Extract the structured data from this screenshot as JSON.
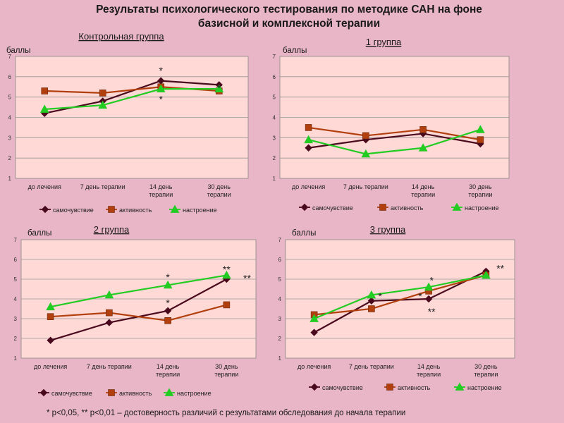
{
  "page": {
    "title_line1": "Результаты психологического тестирования по методике САН на фоне",
    "title_line2": "базисной и комплексной терапии",
    "footnote": "* p<0,05, ** p<0,01 – достоверность различий с результатами обследования до начала терапии"
  },
  "colors": {
    "background": "#e8b6c6",
    "plot_bg": "#ffd9d6",
    "samochuvstvie": "#4a0a1e",
    "aktivnost": "#b2400e",
    "nastroenie": "#22cc22"
  },
  "chart_data": [
    {
      "type": "line",
      "title": "Контрольная группа",
      "ylabel": "баллы",
      "ylim": [
        1,
        7
      ],
      "yticks": [
        "1",
        "2",
        "3",
        "4",
        "5",
        "6",
        "7"
      ],
      "categories": [
        "до лечения",
        "7 день терапии",
        "14 день терапии",
        "30 день терапии"
      ],
      "grid": true,
      "legend": "bottom",
      "series": [
        {
          "name": "самочувствие",
          "values": [
            4.2,
            4.8,
            5.8,
            5.6
          ]
        },
        {
          "name": "активность",
          "values": [
            5.3,
            5.2,
            5.5,
            5.3
          ]
        },
        {
          "name": "настроение",
          "values": [
            4.4,
            4.6,
            5.4,
            5.4
          ]
        }
      ],
      "annotations": [
        {
          "text": "*",
          "category": 2,
          "y": 6.3
        },
        {
          "text": "*",
          "category": 2,
          "y": 4.9
        },
        {
          "text": "*",
          "category": 3,
          "y": 5.45
        }
      ]
    },
    {
      "type": "line",
      "title": "1 группа",
      "ylabel": "баллы",
      "ylim": [
        1,
        7
      ],
      "yticks": [
        "1",
        "2",
        "3",
        "4",
        "5",
        "6",
        "7"
      ],
      "categories": [
        "до лечения",
        "7 день терапии",
        "14 день терапии",
        "30 день терапии"
      ],
      "grid": true,
      "legend": "bottom",
      "series": [
        {
          "name": "самочувствие",
          "values": [
            2.5,
            2.9,
            3.2,
            2.7
          ]
        },
        {
          "name": "активность",
          "values": [
            3.5,
            3.1,
            3.4,
            2.9
          ]
        },
        {
          "name": "настроение",
          "values": [
            2.9,
            2.2,
            2.5,
            3.4
          ]
        }
      ],
      "annotations": []
    },
    {
      "type": "line",
      "title": "2 группа",
      "ylabel": "баллы",
      "ylim": [
        1,
        7
      ],
      "yticks": [
        "1",
        "2",
        "3",
        "4",
        "5",
        "6",
        "7"
      ],
      "categories": [
        "до лечения",
        "7 день терапии",
        "14 день терапии",
        "30 день терапии"
      ],
      "grid": true,
      "legend": "bottom",
      "series": [
        {
          "name": "самочувствие",
          "values": [
            1.9,
            2.8,
            3.4,
            5.0
          ]
        },
        {
          "name": "активность",
          "values": [
            3.1,
            3.3,
            2.9,
            3.7
          ]
        },
        {
          "name": "настроение",
          "values": [
            3.6,
            4.2,
            4.7,
            5.2
          ]
        }
      ],
      "annotations": [
        {
          "text": "*",
          "category": 2,
          "y": 5.1
        },
        {
          "text": "*",
          "category": 2,
          "y": 3.8
        },
        {
          "text": "**",
          "category": 3,
          "y": 5.5
        },
        {
          "text": "**",
          "category": 3.35,
          "y": 5.05
        }
      ]
    },
    {
      "type": "line",
      "title": "3 группа",
      "ylabel": "баллы",
      "ylim": [
        1,
        7
      ],
      "yticks": [
        "1",
        "2",
        "3",
        "4",
        "5",
        "6",
        "7"
      ],
      "categories": [
        "до лечения",
        "7 день терапии",
        "14 день терапии",
        "30 день терапии"
      ],
      "grid": true,
      "legend": "bottom",
      "series": [
        {
          "name": "самочувствие",
          "values": [
            2.3,
            3.9,
            4.0,
            5.4
          ]
        },
        {
          "name": "активность",
          "values": [
            3.2,
            3.5,
            4.4,
            5.2
          ]
        },
        {
          "name": "настроение",
          "values": [
            3.0,
            4.2,
            4.6,
            5.2
          ]
        }
      ],
      "annotations": [
        {
          "text": "*",
          "category": 1.15,
          "y": 4.15
        },
        {
          "text": "*",
          "category": 1.85,
          "y": 4.15
        },
        {
          "text": "*",
          "category": 2.05,
          "y": 4.95
        },
        {
          "text": "**",
          "category": 2.05,
          "y": 3.35
        },
        {
          "text": "**",
          "category": 3.25,
          "y": 5.55
        }
      ]
    }
  ]
}
